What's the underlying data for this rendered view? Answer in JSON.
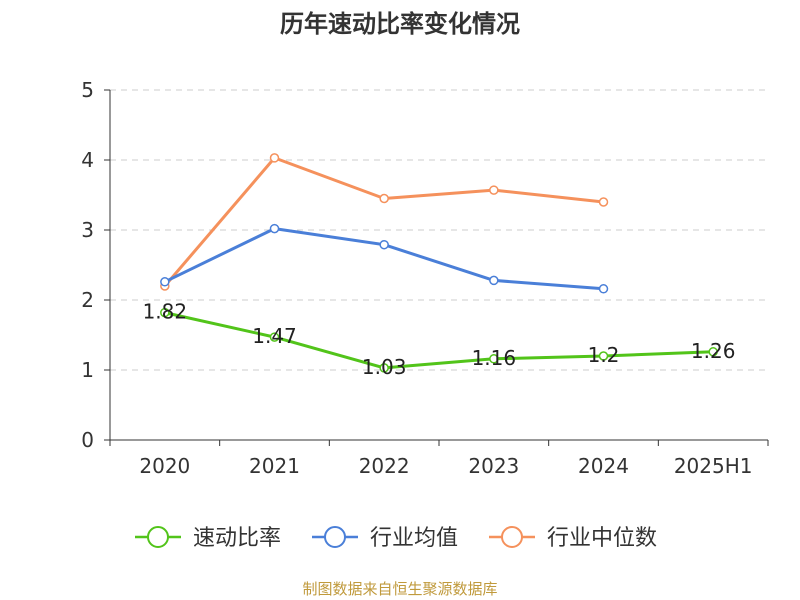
{
  "chart_data": {
    "type": "line",
    "title": "历年速动比率变化情况",
    "categories": [
      "2020",
      "2021",
      "2022",
      "2023",
      "2024",
      "2025H1"
    ],
    "ylim": [
      0,
      5
    ],
    "yticks": [
      0,
      1,
      2,
      3,
      4,
      5
    ],
    "grid": true,
    "legend_position": "bottom",
    "series": [
      {
        "name": "速动比率",
        "color": "#52c41a",
        "values": [
          1.82,
          1.47,
          1.03,
          1.16,
          1.2,
          1.26
        ],
        "labels": [
          "1.82",
          "1.47",
          "1.03",
          "1.16",
          "1.2",
          "1.26"
        ]
      },
      {
        "name": "行业均值",
        "color": "#4a7fd8",
        "values": [
          2.26,
          3.02,
          2.79,
          2.28,
          2.16,
          null
        ]
      },
      {
        "name": "行业中位数",
        "color": "#f5915c",
        "values": [
          2.2,
          4.03,
          3.45,
          3.57,
          3.4,
          null
        ]
      }
    ]
  },
  "source": "制图数据来自恒生聚源数据库"
}
